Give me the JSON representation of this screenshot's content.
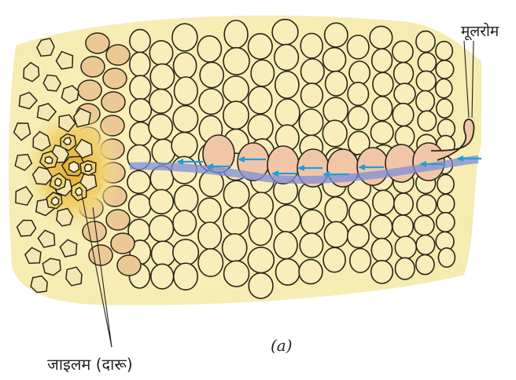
{
  "labels": {
    "root_hair": "मूलरोम",
    "xylem": "जाइलम (दारू)",
    "caption": "(a)"
  },
  "colors": {
    "tissue_fill": "#f6ebb0",
    "tissue_glow": "#fbf2c0",
    "cell_fill": "#f8edbb",
    "cell_outline": "#2a2418",
    "endodermis_fill": "#ecc994",
    "xylem_fill": "#f1d26e",
    "xylem_core": "#e6b23a",
    "water_path": "#7f8ed8",
    "water_cell": "#f1c6a8",
    "arrow": "#1f9fd9"
  },
  "icons": {
    "arrow": "left-arrow-icon"
  }
}
